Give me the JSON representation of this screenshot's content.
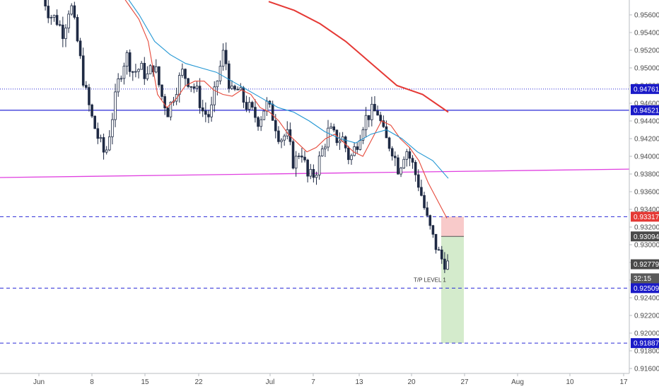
{
  "chart_data": {
    "type": "candlestick",
    "title": "",
    "xlabel": "",
    "ylabel": "",
    "ylim": [
      0.915,
      0.958
    ],
    "grid": false,
    "x_tick_labels": [
      "Jun",
      "8",
      "15",
      "22",
      "Jul",
      "7",
      "13",
      "20",
      "27",
      "Aug",
      "10",
      "17"
    ],
    "y_tick_labels": [
      "0.95600",
      "0.95400",
      "0.95200",
      "0.95000",
      "0.94800",
      "0.94600",
      "0.94400",
      "0.94200",
      "0.94000",
      "0.93800",
      "0.93600",
      "0.93400",
      "0.93200",
      "0.93000",
      "0.92800",
      "0.92600",
      "0.92400",
      "0.92200",
      "0.92000",
      "0.91800",
      "0.91600"
    ],
    "y_tick_values": [
      0.956,
      0.954,
      0.952,
      0.95,
      0.948,
      0.946,
      0.944,
      0.942,
      0.94,
      0.938,
      0.936,
      0.934,
      0.932,
      0.93,
      0.928,
      0.926,
      0.924,
      0.922,
      0.92,
      0.918,
      0.916
    ],
    "price_close_path": [
      0.9585,
      0.956,
      0.9555,
      0.954,
      0.9575,
      0.953,
      0.948,
      0.9445,
      0.942,
      0.94,
      0.9445,
      0.949,
      0.9515,
      0.9495,
      0.95,
      0.949,
      0.9505,
      0.947,
      0.945,
      0.9475,
      0.9495,
      0.9485,
      0.9475,
      0.945,
      0.9445,
      0.9485,
      0.952,
      0.947,
      0.9475,
      0.946,
      0.945,
      0.944,
      0.946,
      0.9445,
      0.942,
      0.9425,
      0.939,
      0.941,
      0.9375,
      0.938,
      0.9405,
      0.943,
      0.942,
      0.942,
      0.9395,
      0.9415,
      0.944,
      0.945,
      0.945,
      0.942,
      0.941,
      0.9385,
      0.941,
      0.939,
      0.9365,
      0.933,
      0.9305,
      0.9285,
      0.9278
    ],
    "ema_fast": [
      0.9585,
      0.957,
      0.9555,
      0.953,
      0.947,
      0.9455,
      0.9465,
      0.948,
      0.9485,
      0.9485,
      0.9475,
      0.947,
      0.9468,
      0.9475,
      0.947,
      0.9455,
      0.945,
      0.944,
      0.9425,
      0.9415,
      0.9405,
      0.941,
      0.942,
      0.9425,
      0.9415,
      0.9405,
      0.94,
      0.942,
      0.944,
      0.9435,
      0.942,
      0.941,
      0.9395,
      0.937,
      0.935,
      0.933
    ],
    "ema_slow": [
      0.9585,
      0.956,
      0.953,
      0.9515,
      0.9505,
      0.95,
      0.9495,
      0.9485,
      0.9475,
      0.9465,
      0.9455,
      0.945,
      0.944,
      0.9428,
      0.942,
      0.9415,
      0.9425,
      0.943,
      0.942,
      0.9405,
      0.9395,
      0.9375
    ],
    "ma_long": [
      0.9575,
      0.9565,
      0.955,
      0.953,
      0.9505,
      0.948,
      0.947,
      0.945
    ],
    "horizontal_levels": [
      {
        "value": 0.94761,
        "label": "0.94761",
        "style": "dotted",
        "color": "#2a2ad6"
      },
      {
        "value": 0.94521,
        "label": "0.94521",
        "style": "solid",
        "color": "#2a2ad6"
      },
      {
        "value": 0.93317,
        "label": "0.93317",
        "style": "dashed",
        "color": "#2a2ad6"
      },
      {
        "value": 0.92509,
        "label": "0.92509",
        "style": "dashed",
        "color": "#2a2ad6"
      },
      {
        "value": 0.91887,
        "label": "0.91887",
        "style": "dashed",
        "color": "#2a2ad6"
      }
    ],
    "trendline": {
      "from": 0.9376,
      "to": 0.93855,
      "color": "#e040e0"
    },
    "position": {
      "entry": 0.93094,
      "stop": 0.93317,
      "target": 0.91887
    },
    "price_tags": [
      {
        "label": "0.93094",
        "value": 0.93094,
        "color": "#4a4a4a"
      },
      {
        "label": "0.92779",
        "value": 0.92779,
        "color": "#4a4a4a"
      },
      {
        "label": "32:15",
        "value": 0.9262,
        "color": "#5a5a5a"
      }
    ],
    "annotation": "T/P LEVEL 1",
    "colors": {
      "line_fast": "#e64a3b",
      "line_slow": "#2196d3",
      "ma_long": "#e53935",
      "stop_zone": "#f7c4c4",
      "target_zone": "#cfe9c6"
    }
  }
}
